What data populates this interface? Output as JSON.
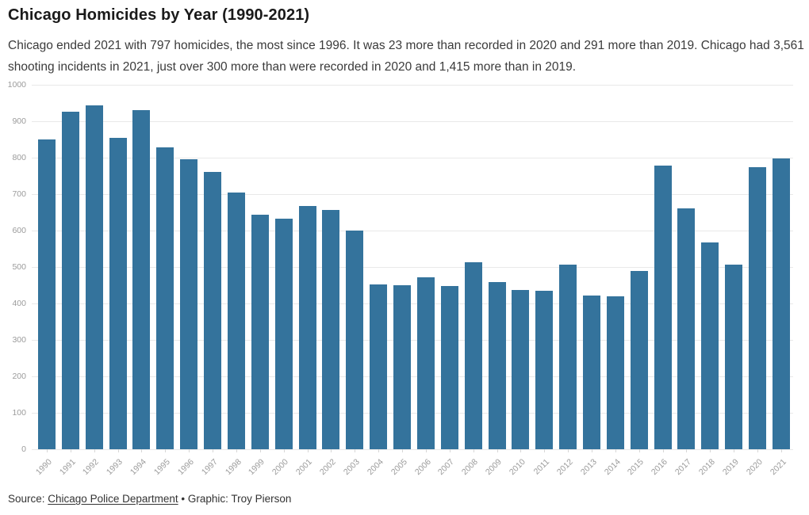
{
  "header": {
    "title": "Chicago Homicides by Year (1990-2021)",
    "subtitle": "Chicago ended 2021 with 797 homicides, the most since 1996. It was 23 more than recorded in 2020 and 291 more than 2019. Chicago had 3,561 shooting incidents in 2021, just over 300 more than were recorded in 2020 and 1,415 more than in 2019."
  },
  "chart_data": {
    "type": "bar",
    "title": "Chicago Homicides by Year (1990-2021)",
    "categories": [
      "1990",
      "1991",
      "1992",
      "1993",
      "1994",
      "1995",
      "1996",
      "1997",
      "1998",
      "1999",
      "2000",
      "2001",
      "2002",
      "2003",
      "2004",
      "2005",
      "2006",
      "2007",
      "2008",
      "2009",
      "2010",
      "2011",
      "2012",
      "2013",
      "2014",
      "2015",
      "2016",
      "2017",
      "2018",
      "2019",
      "2020",
      "2021"
    ],
    "values": [
      851,
      927,
      943,
      855,
      931,
      828,
      796,
      761,
      704,
      643,
      633,
      667,
      656,
      601,
      453,
      451,
      471,
      448,
      513,
      459,
      438,
      435,
      507,
      422,
      420,
      490,
      778,
      660,
      567,
      506,
      774,
      797
    ],
    "xlabel": "",
    "ylabel": "",
    "ylim": [
      0,
      1000
    ],
    "ytick_interval": 100,
    "grid": true,
    "legend": false,
    "bar_color": "#34739c",
    "gridline_color": "#e9e9e9",
    "axis_label_color": "#9b9b9b"
  },
  "footer": {
    "source_prefix": "Source: ",
    "source_link": "Chicago Police Department",
    "separator": " • ",
    "graphic_credit": "Graphic: Troy Pierson"
  }
}
